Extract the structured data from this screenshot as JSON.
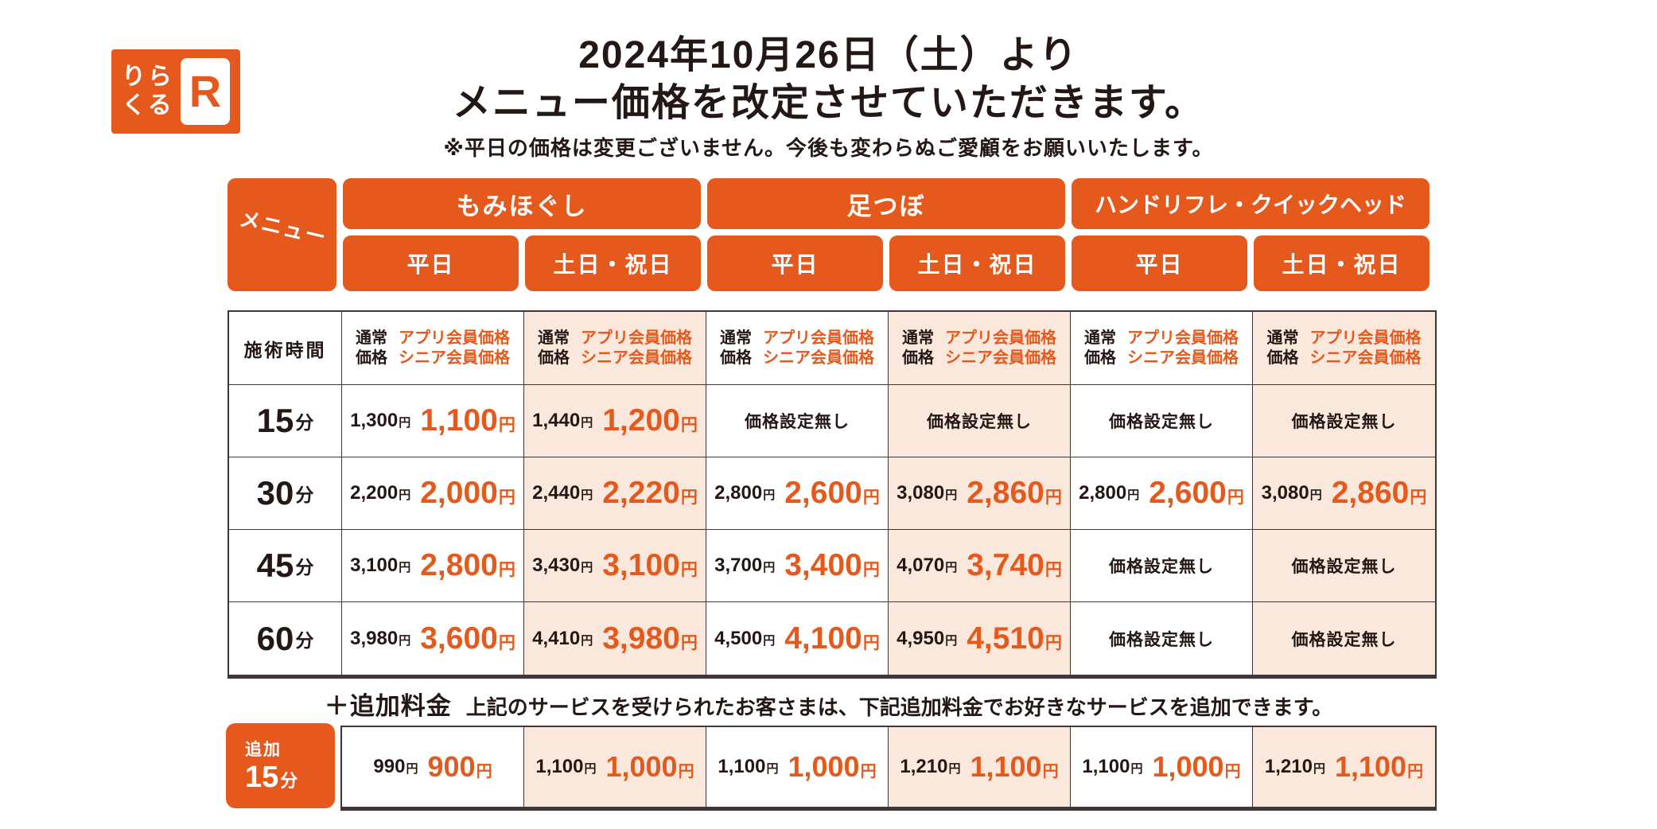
{
  "colors": {
    "brand_orange": "#E5591D",
    "weekend_bg": "#FAE8DC",
    "text_dark": "#231815",
    "border": "#3D3835"
  },
  "logo": {
    "kana_top": "りら",
    "kana_bottom": "くる",
    "r_mark": "R"
  },
  "header": {
    "title_line1": "2024年10月26日（土）より",
    "title_line2": "メニュー価格を改定させていただきます。",
    "subtitle": "※平日の価格は変更ございません。今後も変わらぬご愛顧をお願いいたします。"
  },
  "menu_header": {
    "corner_label": "メニュー",
    "categories": [
      "もみほぐし",
      "足つぼ",
      "ハンドリフレ・クイックヘッド"
    ],
    "day_labels": [
      "平日",
      "土日・祝日",
      "平日",
      "土日・祝日",
      "平日",
      "土日・祝日"
    ]
  },
  "labels": {
    "time_header": "施術時間",
    "normal_price_line1": "通常",
    "normal_price_line2": "価格",
    "member_price_line1": "アプリ会員価格",
    "member_price_line2": "シニア会員価格",
    "yen": "円",
    "minutes": "分",
    "no_price": "価格設定無し"
  },
  "price_table": {
    "rows": [
      {
        "time": "15",
        "cells": [
          {
            "normal": "1,300",
            "member": "1,100"
          },
          {
            "normal": "1,440",
            "member": "1,200"
          },
          {
            "none": true
          },
          {
            "none": true
          },
          {
            "none": true
          },
          {
            "none": true
          }
        ]
      },
      {
        "time": "30",
        "cells": [
          {
            "normal": "2,200",
            "member": "2,000"
          },
          {
            "normal": "2,440",
            "member": "2,220"
          },
          {
            "normal": "2,800",
            "member": "2,600"
          },
          {
            "normal": "3,080",
            "member": "2,860"
          },
          {
            "normal": "2,800",
            "member": "2,600"
          },
          {
            "normal": "3,080",
            "member": "2,860"
          }
        ]
      },
      {
        "time": "45",
        "cells": [
          {
            "normal": "3,100",
            "member": "2,800"
          },
          {
            "normal": "3,430",
            "member": "3,100"
          },
          {
            "normal": "3,700",
            "member": "3,400"
          },
          {
            "normal": "4,070",
            "member": "3,740"
          },
          {
            "none": true
          },
          {
            "none": true
          }
        ]
      },
      {
        "time": "60",
        "cells": [
          {
            "normal": "3,980",
            "member": "3,600"
          },
          {
            "normal": "4,410",
            "member": "3,980"
          },
          {
            "normal": "4,500",
            "member": "4,100"
          },
          {
            "normal": "4,950",
            "member": "4,510"
          },
          {
            "none": true
          },
          {
            "none": true
          }
        ]
      }
    ]
  },
  "addon": {
    "plus_label": "＋追加料金",
    "note": "上記のサービスを受けられたお客さまは、下記追加料金でお好きなサービスを追加できます。",
    "badge_top": "追加",
    "badge_time": "15",
    "cells": [
      {
        "normal": "990",
        "member": "900"
      },
      {
        "normal": "1,100",
        "member": "1,000"
      },
      {
        "normal": "1,100",
        "member": "1,000"
      },
      {
        "normal": "1,210",
        "member": "1,100"
      },
      {
        "normal": "1,100",
        "member": "1,000"
      },
      {
        "normal": "1,210",
        "member": "1,100"
      }
    ]
  }
}
